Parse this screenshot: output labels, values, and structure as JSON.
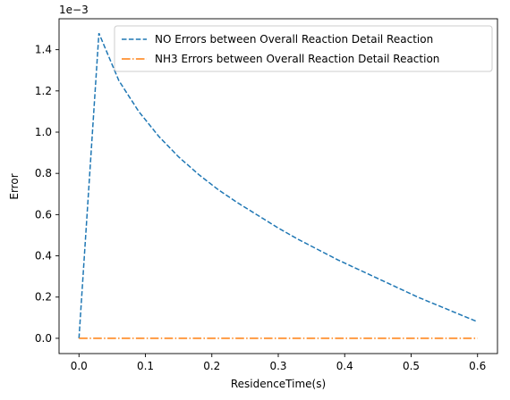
{
  "chart_data": {
    "type": "line",
    "title": "",
    "xlabel": "ResidenceTime(s)",
    "ylabel": "Error",
    "offset_text": "1e−3",
    "xlim": [
      -0.03,
      0.63
    ],
    "ylim": [
      -0.074,
      1.55
    ],
    "xticks": [
      0.0,
      0.1,
      0.2,
      0.3,
      0.4,
      0.5,
      0.6
    ],
    "xtick_labels": [
      "0.0",
      "0.1",
      "0.2",
      "0.3",
      "0.4",
      "0.5",
      "0.6"
    ],
    "yticks": [
      0.0,
      0.2,
      0.4,
      0.6,
      0.8,
      1.0,
      1.2,
      1.4
    ],
    "ytick_labels": [
      "0.0",
      "0.2",
      "0.4",
      "0.6",
      "0.8",
      "1.0",
      "1.2",
      "1.4"
    ],
    "grid": false,
    "legend_position": "top-right",
    "series": [
      {
        "name": "NO Errors between Overall Reaction Detail Reaction",
        "color": "#1f77b4",
        "style": "dashed",
        "x": [
          0.0,
          0.03,
          0.06,
          0.09,
          0.12,
          0.15,
          0.18,
          0.21,
          0.24,
          0.27,
          0.3,
          0.33,
          0.36,
          0.39,
          0.42,
          0.45,
          0.48,
          0.51,
          0.54,
          0.57,
          0.6
        ],
        "y": [
          0.0,
          1.48,
          1.25,
          1.1,
          0.98,
          0.88,
          0.795,
          0.72,
          0.655,
          0.595,
          0.535,
          0.48,
          0.43,
          0.38,
          0.335,
          0.29,
          0.245,
          0.2,
          0.16,
          0.12,
          0.08
        ]
      },
      {
        "name": "NH3 Errors between Overall Reaction Detail Reaction",
        "color": "#ff7f0e",
        "style": "dashdot",
        "x": [
          0.0,
          0.6
        ],
        "y": [
          0.0,
          0.0
        ]
      }
    ]
  }
}
